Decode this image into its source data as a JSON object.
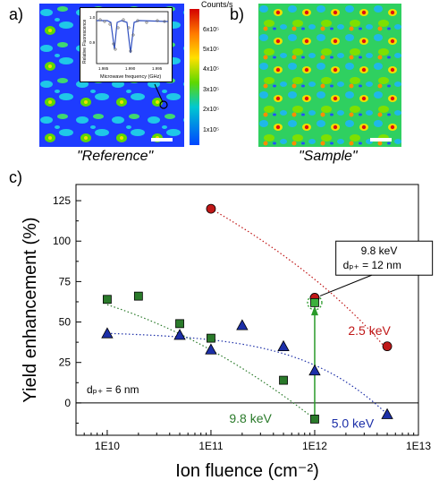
{
  "panels": {
    "a": "a)",
    "b": "b)",
    "c": "c)"
  },
  "maps": {
    "reference_caption": "\"Reference\"",
    "sample_caption": "\"Sample\"",
    "colorbar": {
      "title": "Counts/s",
      "ticks": [
        "6x10⁵",
        "5x10⁵",
        "4x10⁵",
        "3x10⁵",
        "2x10⁵",
        "1x10⁵"
      ],
      "colors": [
        "#d40000",
        "#ff7a00",
        "#ffe000",
        "#5fd800",
        "#00c8d0",
        "#0046ff"
      ]
    },
    "inset": {
      "ylabel": "Relative Fluorescence",
      "xlabel": "Microwave frequency (GHz)",
      "xticks": [
        "1.985",
        "1.990",
        "1.995"
      ],
      "yticks": [
        "1.0",
        "0.9"
      ]
    }
  },
  "chart_data": {
    "type": "scatter",
    "xlabel": "Ion fluence (cm⁻²)",
    "ylabel": "Yield enhancement (%)",
    "x_scale": "log",
    "xlim": [
      5000000000.0,
      10000000000000.0
    ],
    "ylim": [
      -20,
      135
    ],
    "xticks": [
      {
        "value": 10000000000.0,
        "label": "1E10"
      },
      {
        "value": 100000000000.0,
        "label": "1E11"
      },
      {
        "value": 1000000000000.0,
        "label": "1E12"
      },
      {
        "value": 10000000000000.0,
        "label": "1E13"
      }
    ],
    "yticks": [
      0,
      25,
      50,
      75,
      100,
      125
    ],
    "series": [
      {
        "name": "2.5 keV",
        "color": "#c01818",
        "marker": "circle",
        "points": [
          [
            100000000000.0,
            120
          ],
          [
            1000000000000.0,
            65
          ],
          [
            5000000000000.0,
            35
          ]
        ]
      },
      {
        "name": "9.8 keV",
        "color": "#2a7a2a",
        "marker": "square",
        "points": [
          [
            10000000000.0,
            64
          ],
          [
            20000000000.0,
            66
          ],
          [
            50000000000.0,
            49
          ],
          [
            100000000000.0,
            40
          ],
          [
            500000000000.0,
            14
          ],
          [
            1000000000000.0,
            -10
          ]
        ]
      },
      {
        "name": "5.0 keV",
        "color": "#1c2fa8",
        "marker": "triangle",
        "points": [
          [
            10000000000.0,
            43
          ],
          [
            50000000000.0,
            42
          ],
          [
            100000000000.0,
            33
          ],
          [
            200000000000.0,
            48
          ],
          [
            500000000000.0,
            35
          ],
          [
            1000000000000.0,
            20
          ],
          [
            5000000000000.0,
            -7
          ]
        ]
      }
    ],
    "highlight_point": {
      "x": 1000000000000.0,
      "y": 62
    },
    "annotations": {
      "callout_energy": "9.8 keV",
      "callout_spacing": "dₚ₊ = 12 nm",
      "left_spacing": "dₚ₊ = 6 nm",
      "label_2_5": "2.5 keV",
      "label_9_8": "9.8 keV",
      "label_5_0": "5.0 keV"
    }
  }
}
